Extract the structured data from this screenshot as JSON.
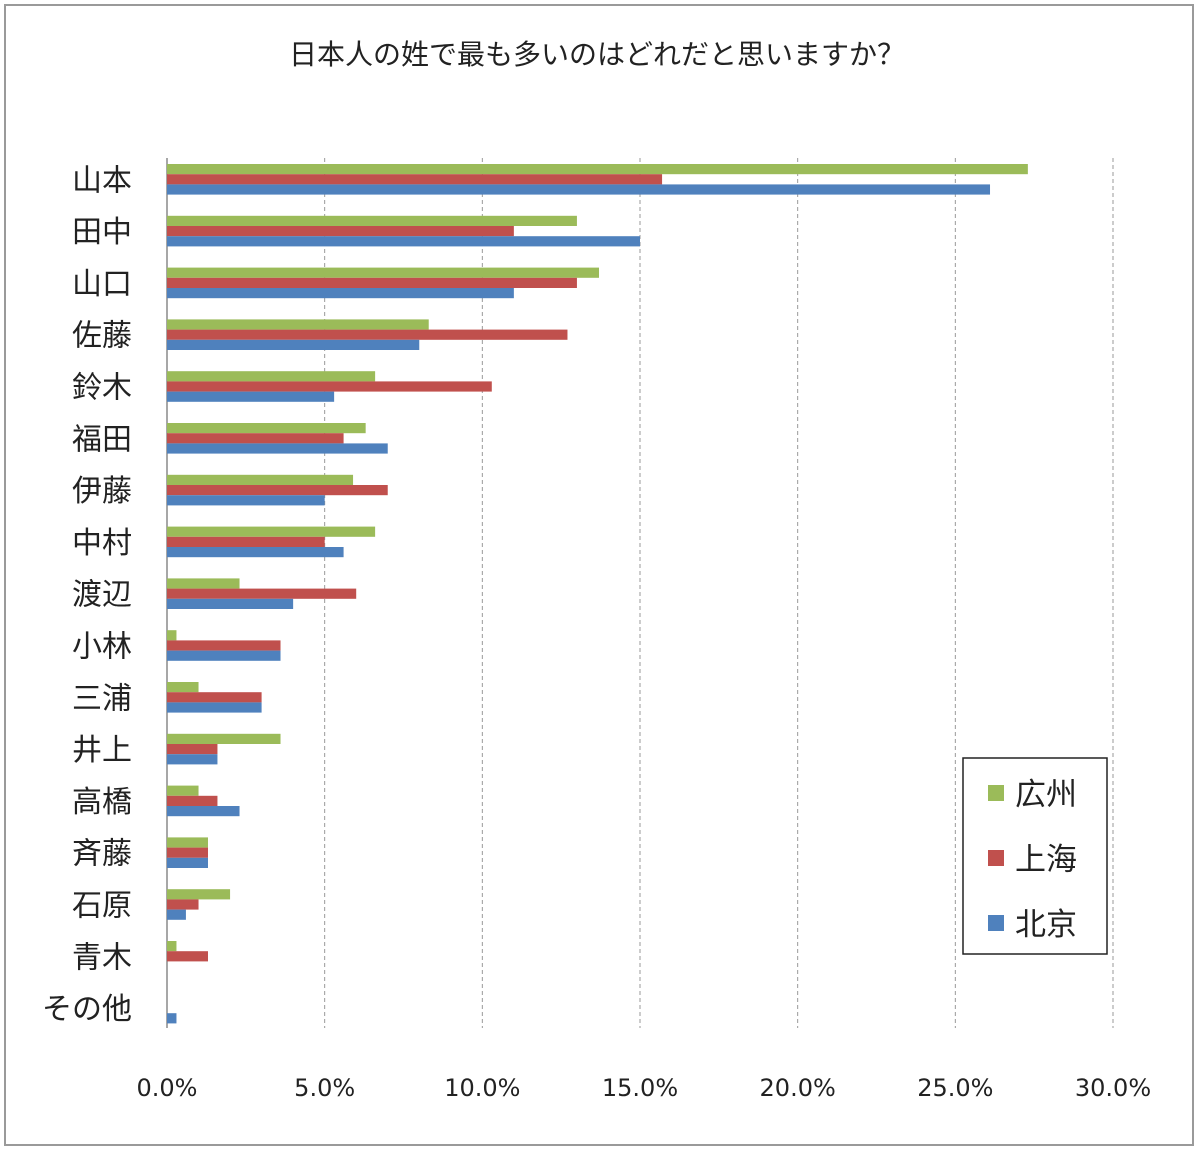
{
  "chart_data": {
    "type": "bar",
    "orientation": "horizontal",
    "title": "日本人の姓で最も多いのはどれだと思いますか？",
    "categories": [
      "山本",
      "田中",
      "山口",
      "佐藤",
      "鈴木",
      "福田",
      "伊藤",
      "中村",
      "渡辺",
      "小林",
      "三浦",
      "井上",
      "高橋",
      "斉藤",
      "石原",
      "青木",
      "その他"
    ],
    "series": [
      {
        "name": "広州",
        "color": "#9bbb59",
        "values": [
          27.3,
          13.0,
          13.7,
          8.3,
          6.6,
          6.3,
          5.9,
          6.6,
          2.3,
          0.3,
          1.0,
          3.6,
          1.0,
          1.3,
          2.0,
          0.3,
          0.0
        ]
      },
      {
        "name": "上海",
        "color": "#c0504d",
        "values": [
          15.7,
          11.0,
          13.0,
          12.7,
          10.3,
          5.6,
          7.0,
          5.0,
          6.0,
          3.6,
          3.0,
          1.6,
          1.6,
          1.3,
          1.0,
          1.3,
          0.0
        ]
      },
      {
        "name": "北京",
        "color": "#4f81bd",
        "values": [
          26.1,
          15.0,
          11.0,
          8.0,
          5.3,
          7.0,
          5.0,
          5.6,
          4.0,
          3.6,
          3.0,
          1.6,
          2.3,
          1.3,
          0.6,
          0.0,
          0.3
        ]
      }
    ],
    "xlim": [
      0,
      30
    ],
    "xticks": [
      "0.0%",
      "5.0%",
      "10.0%",
      "15.0%",
      "20.0%",
      "25.0%",
      "30.0%"
    ],
    "grid": "vertical dashed",
    "legend_position": "bottom-right"
  }
}
